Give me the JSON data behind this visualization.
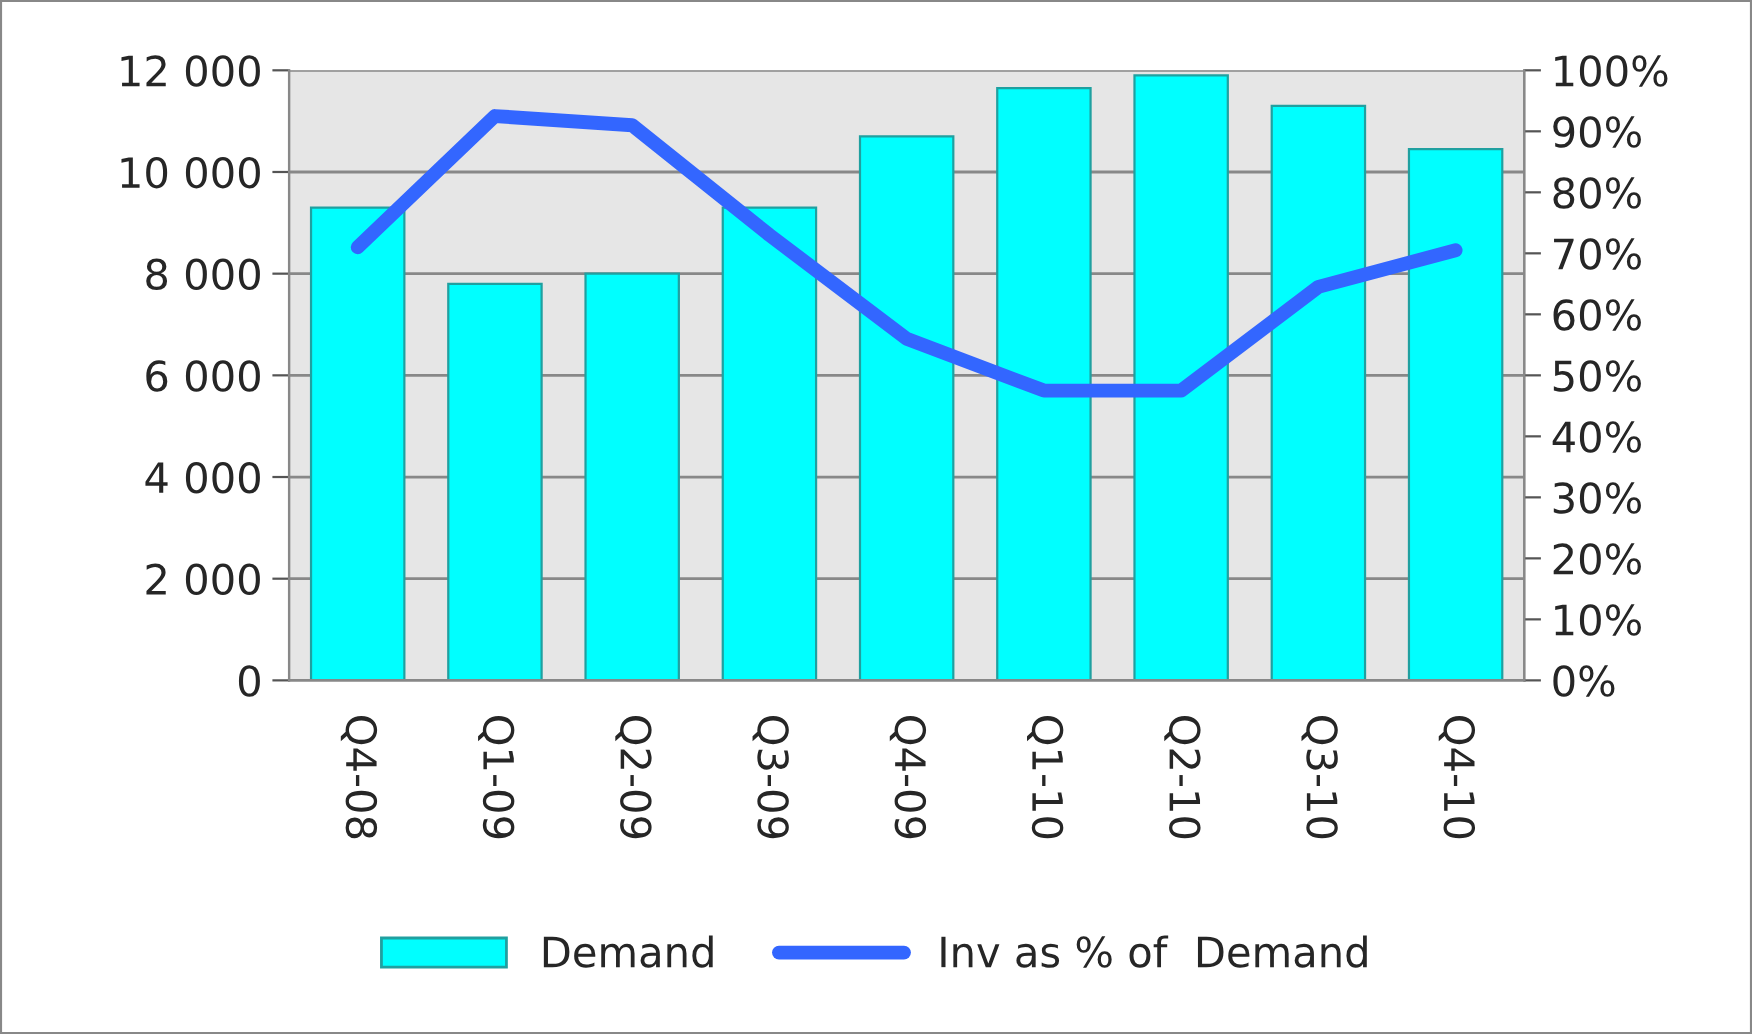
{
  "chart_data": {
    "type": "bar",
    "categories": [
      "Q4-08",
      "Q1-09",
      "Q2-09",
      "Q3-09",
      "Q4-09",
      "Q1-10",
      "Q2-10",
      "Q3-10",
      "Q4-10"
    ],
    "series": [
      {
        "name": "Demand",
        "color": "#00ffff",
        "values": [
          9300,
          7800,
          8000,
          9300,
          10700,
          11650,
          11900,
          11300,
          10450
        ]
      },
      {
        "name": "Inv as % of  Demand",
        "type": "line",
        "axis": "y2",
        "color": "#3366ff",
        "values": [
          71,
          92.5,
          91,
          73,
          56,
          47.5,
          47.5,
          64.5,
          70.5
        ]
      }
    ],
    "ylim": [
      0,
      12000
    ],
    "yticks": [
      {
        "value": 0,
        "label": "0"
      },
      {
        "value": 2000,
        "label": "2 000"
      },
      {
        "value": 4000,
        "label": "4 000"
      },
      {
        "value": 6000,
        "label": "6 000"
      },
      {
        "value": 8000,
        "label": "8 000"
      },
      {
        "value": 10000,
        "label": "10 000"
      },
      {
        "value": 12000,
        "label": "12 000"
      }
    ],
    "y2lim": [
      0,
      100
    ],
    "y2ticks": [
      {
        "value": 0,
        "label": "0%"
      },
      {
        "value": 10,
        "label": "10%"
      },
      {
        "value": 20,
        "label": "20%"
      },
      {
        "value": 30,
        "label": "30%"
      },
      {
        "value": 40,
        "label": "40%"
      },
      {
        "value": 50,
        "label": "50%"
      },
      {
        "value": 60,
        "label": "60%"
      },
      {
        "value": 70,
        "label": "70%"
      },
      {
        "value": 80,
        "label": "80%"
      },
      {
        "value": 90,
        "label": "90%"
      },
      {
        "value": 100,
        "label": "100%"
      }
    ],
    "grid": "y",
    "legend": "bottom",
    "marker": "none",
    "line_style": "solid"
  }
}
